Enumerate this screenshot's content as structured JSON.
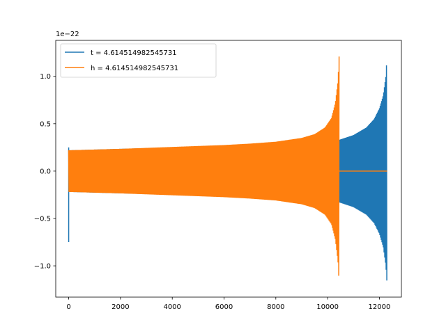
{
  "chart_data": {
    "type": "line",
    "title": "",
    "xlabel": "",
    "ylabel": "",
    "y_offset_label": "1e−22",
    "xlim": [
      -500,
      12850
    ],
    "ylim": [
      -1.33,
      1.38
    ],
    "x_ticks": [
      {
        "value": 0,
        "label": "0"
      },
      {
        "value": 2000,
        "label": "2000"
      },
      {
        "value": 4000,
        "label": "4000"
      },
      {
        "value": 6000,
        "label": "6000"
      },
      {
        "value": 8000,
        "label": "8000"
      },
      {
        "value": 10000,
        "label": "10000"
      },
      {
        "value": 12000,
        "label": "12000"
      }
    ],
    "y_ticks": [
      {
        "value": -1.0,
        "label": "−1.0"
      },
      {
        "value": -0.5,
        "label": "−0.5"
      },
      {
        "value": 0.0,
        "label": "0.0"
      },
      {
        "value": 0.5,
        "label": "0.5"
      },
      {
        "value": 1.0,
        "label": "1.0"
      }
    ],
    "grid": false,
    "legend_position": "top-left",
    "series": [
      {
        "name": "t = 4.614514982545731",
        "color": "#1f77b4",
        "kind": "chirp_oscillation",
        "envelope_upper": [
          [
            0,
            0.22
          ],
          [
            2000,
            0.235
          ],
          [
            4000,
            0.25
          ],
          [
            6000,
            0.27
          ],
          [
            8000,
            0.295
          ],
          [
            10000,
            0.32
          ],
          [
            10450,
            0.33
          ],
          [
            11000,
            0.38
          ],
          [
            11500,
            0.46
          ],
          [
            11800,
            0.55
          ],
          [
            12000,
            0.66
          ],
          [
            12150,
            0.8
          ],
          [
            12250,
            1.0
          ],
          [
            12300,
            1.25
          ]
        ],
        "envelope_lower": [
          [
            0,
            -0.22
          ],
          [
            2000,
            -0.235
          ],
          [
            4000,
            -0.25
          ],
          [
            6000,
            -0.27
          ],
          [
            8000,
            -0.295
          ],
          [
            10000,
            -0.32
          ],
          [
            10450,
            -0.33
          ],
          [
            11000,
            -0.38
          ],
          [
            11500,
            -0.46
          ],
          [
            11800,
            -0.55
          ],
          [
            12000,
            -0.66
          ],
          [
            12150,
            -0.8
          ],
          [
            12250,
            -1.0
          ],
          [
            12300,
            -1.21
          ]
        ],
        "spike": {
          "x": 0,
          "y_min": -0.75,
          "y_max": 0.25
        }
      },
      {
        "name": "h = 4.614514982545731",
        "color": "#ff7f0e",
        "kind": "chirp_oscillation",
        "envelope_upper": [
          [
            0,
            0.22
          ],
          [
            2000,
            0.235
          ],
          [
            4000,
            0.255
          ],
          [
            6000,
            0.275
          ],
          [
            7000,
            0.29
          ],
          [
            8000,
            0.31
          ],
          [
            9000,
            0.35
          ],
          [
            9500,
            0.39
          ],
          [
            9900,
            0.46
          ],
          [
            10150,
            0.56
          ],
          [
            10300,
            0.72
          ],
          [
            10400,
            0.95
          ],
          [
            10450,
            1.25
          ]
        ],
        "envelope_lower": [
          [
            0,
            -0.22
          ],
          [
            2000,
            -0.235
          ],
          [
            4000,
            -0.255
          ],
          [
            6000,
            -0.275
          ],
          [
            7000,
            -0.29
          ],
          [
            8000,
            -0.31
          ],
          [
            9000,
            -0.35
          ],
          [
            9500,
            -0.39
          ],
          [
            9900,
            -0.46
          ],
          [
            10150,
            -0.56
          ],
          [
            10300,
            -0.72
          ],
          [
            10400,
            -0.95
          ],
          [
            10450,
            -1.21
          ]
        ],
        "after_end": {
          "x_start": 10450,
          "x_end": 12300,
          "y": 0.0
        }
      }
    ]
  }
}
